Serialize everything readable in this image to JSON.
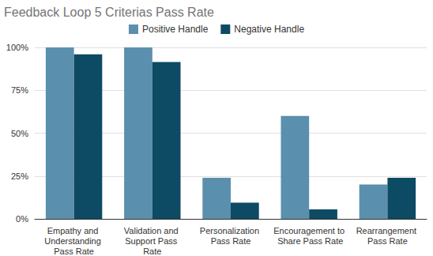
{
  "chart_data": {
    "type": "bar",
    "title": "Feedback Loop 5 Criterias Pass Rate",
    "categories": [
      "Empathy and Understanding Pass Rate",
      "Validation and Support Pass Rate",
      "Personalization Pass Rate",
      "Encouragement to Share Pass Rate",
      "Rearrangement Pass Rate"
    ],
    "series": [
      {
        "name": "Positive Handle",
        "color": "#5b8fae",
        "values": [
          100,
          100,
          24,
          60,
          20
        ]
      },
      {
        "name": "Negative Handle",
        "color": "#0d4a63",
        "values": [
          96,
          91.5,
          9.5,
          5.5,
          24
        ]
      }
    ],
    "ylim": [
      0,
      100
    ],
    "yticks": [
      {
        "value": 0,
        "label": "0%"
      },
      {
        "value": 25,
        "label": "25%"
      },
      {
        "value": 50,
        "label": "50%"
      },
      {
        "value": 75,
        "label": "75%"
      },
      {
        "value": 100,
        "label": "100%"
      }
    ],
    "grid": true,
    "legend": "top"
  }
}
